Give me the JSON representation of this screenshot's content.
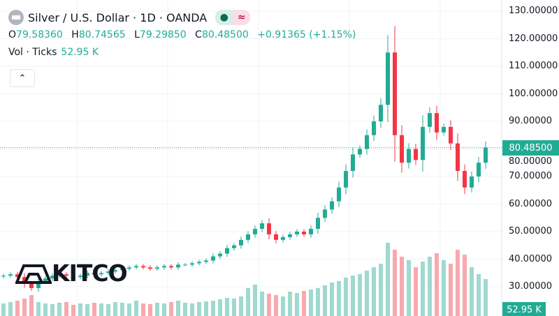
{
  "header": {
    "title": "Silver / U.S. Dollar · 1D · OANDA",
    "status_dot": "●",
    "approx_icon": "≈"
  },
  "ohlc": {
    "o_label": "O",
    "o": "79.58360",
    "h_label": "H",
    "h": "80.74565",
    "l_label": "L",
    "l": "79.29850",
    "c_label": "C",
    "c": "80.48500",
    "change": "+0.91365 (+1.15%)"
  },
  "volume": {
    "label": "Vol · Ticks",
    "value": "52.95 K"
  },
  "collapse_icon": "⌃",
  "watermark": "KITCO",
  "price_tag": "80.48500",
  "volume_tag": "52.95 K",
  "colors": {
    "up": "#22ab94",
    "down": "#f23645",
    "up_vol": "#9fd9cf",
    "down_vol": "#f7a9ae"
  },
  "chart_data": {
    "type": "candlestick",
    "ylim": [
      25,
      130
    ],
    "y_ticks": [
      "130.00000",
      "120.00000",
      "110.00000",
      "100.00000",
      "90.00000",
      "80.00000",
      "70.00000",
      "60.00000",
      "50.00000",
      "40.00000",
      "30.00000"
    ],
    "last_price": 80.485,
    "closes": [
      34,
      34.5,
      33.5,
      31,
      29.5,
      32,
      33,
      34,
      34.5,
      34,
      33.5,
      34,
      35,
      34.5,
      35,
      35.5,
      36,
      36.5,
      37,
      37.5,
      37,
      36.5,
      37,
      37.5,
      37,
      38,
      38,
      38.5,
      39,
      39.5,
      41,
      42,
      44,
      45,
      47,
      49,
      51,
      53,
      49,
      47,
      48,
      49,
      50,
      49,
      51,
      55,
      58,
      61,
      66,
      72,
      78,
      80,
      85,
      90,
      96,
      115,
      85,
      75,
      80,
      76,
      88,
      93,
      86,
      88,
      82,
      72,
      66,
      70,
      75,
      80.5
    ],
    "volumes_k": [
      18,
      20,
      22,
      25,
      30,
      20,
      18,
      17,
      19,
      20,
      16,
      18,
      17,
      19,
      18,
      17,
      20,
      19,
      18,
      22,
      18,
      17,
      19,
      18,
      20,
      22,
      19,
      18,
      20,
      21,
      22,
      24,
      26,
      25,
      28,
      40,
      45,
      35,
      32,
      30,
      28,
      35,
      33,
      36,
      38,
      40,
      44,
      48,
      50,
      55,
      58,
      60,
      65,
      70,
      75,
      105,
      95,
      85,
      80,
      70,
      78,
      85,
      90,
      80,
      75,
      95,
      88,
      70,
      60,
      52.95
    ]
  }
}
